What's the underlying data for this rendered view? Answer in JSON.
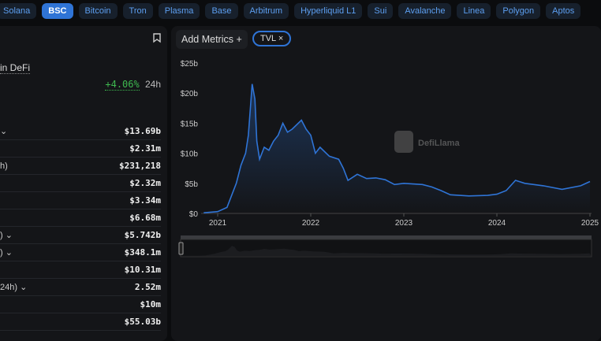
{
  "chains": [
    "Solana",
    "BSC",
    "Bitcoin",
    "Tron",
    "Plasma",
    "Base",
    "Arbitrum",
    "Hyperliquid L1",
    "Sui",
    "Avalanche",
    "Linea",
    "Polygon",
    "Aptos"
  ],
  "active_chain": "BSC",
  "left": {
    "defi_link": "in DeFi",
    "change": "+4.06%",
    "change_period": "24h",
    "rows": [
      {
        "label": "",
        "value": "$13.69b",
        "chevron": true
      },
      {
        "label": "",
        "value": "$2.31m"
      },
      {
        "label": "h)",
        "value": "$231,218"
      },
      {
        "label": "",
        "value": "$2.32m"
      },
      {
        "label": "",
        "value": "$3.34m"
      },
      {
        "label": "",
        "value": "$6.68m"
      },
      {
        "label": ")",
        "value": "$5.742b",
        "chevron": true
      },
      {
        "label": ")",
        "value": "$348.1m",
        "chevron": true
      },
      {
        "label": "",
        "value": "$10.31m"
      },
      {
        "label": "24h)",
        "value": "2.52m",
        "chevron": true
      },
      {
        "label": "",
        "value": "$10m"
      },
      {
        "label": "",
        "value": "$55.03b"
      }
    ]
  },
  "toolbar": {
    "add_metrics": "Add Metrics",
    "add_icon": "+",
    "metric_tag": "TVL",
    "remove_icon": "×"
  },
  "watermark": "DefiLlama",
  "chart_data": {
    "type": "area",
    "series": [
      {
        "name": "TVL",
        "color": "#2f74d6",
        "x": [
          2020.85,
          2021.0,
          2021.1,
          2021.15,
          2021.2,
          2021.25,
          2021.3,
          2021.33,
          2021.37,
          2021.4,
          2021.42,
          2021.45,
          2021.5,
          2021.55,
          2021.6,
          2021.65,
          2021.7,
          2021.75,
          2021.8,
          2021.9,
          2021.95,
          2022.0,
          2022.05,
          2022.1,
          2022.2,
          2022.3,
          2022.35,
          2022.4,
          2022.5,
          2022.6,
          2022.7,
          2022.8,
          2022.9,
          2023.0,
          2023.2,
          2023.3,
          2023.4,
          2023.5,
          2023.7,
          2023.9,
          2024.0,
          2024.1,
          2024.2,
          2024.3,
          2024.5,
          2024.7,
          2024.9,
          2025.0
        ],
        "y": [
          0.1,
          0.3,
          1,
          3,
          5,
          8,
          10,
          13,
          21.5,
          19,
          12,
          9,
          11,
          10.5,
          12,
          13,
          15,
          13.5,
          14,
          15.5,
          14,
          13,
          10,
          11,
          9.5,
          9,
          7.5,
          5.5,
          6.5,
          5.8,
          5.9,
          5.6,
          4.8,
          5,
          4.8,
          4.4,
          3.8,
          3.1,
          2.9,
          3.0,
          3.2,
          3.8,
          5.5,
          5.0,
          4.6,
          4.0,
          4.6,
          5.3
        ]
      }
    ],
    "yticks": [
      "$0",
      "$5b",
      "$10b",
      "$15b",
      "$20b",
      "$25b"
    ],
    "ylim": [
      0,
      25
    ],
    "xticks": [
      "2021",
      "2022",
      "2023",
      "2024",
      "2025"
    ],
    "xlim": [
      2020.85,
      2025.02
    ]
  }
}
